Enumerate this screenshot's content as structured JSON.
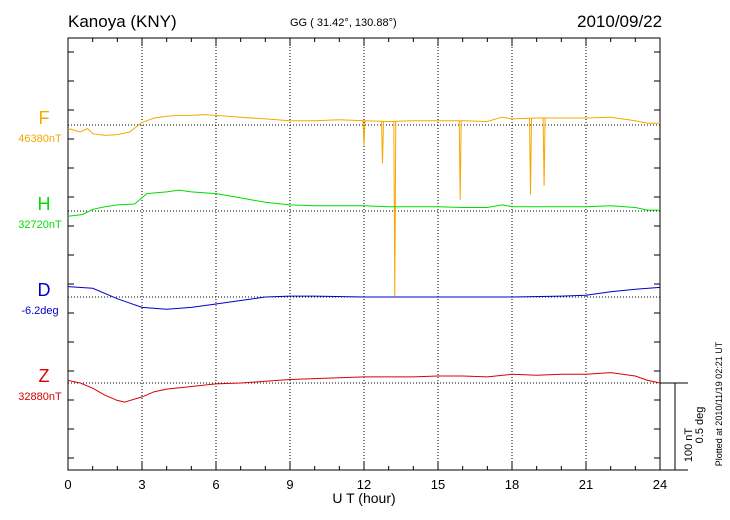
{
  "header": {
    "station": "Kanoya (KNY)",
    "coords": "GG ( 31.42°, 130.88°)",
    "date": "2010/09/22"
  },
  "side_note": "Plotted at 2010/11/19 02:21  UT",
  "scale": {
    "line1": "100 nT",
    "line2": "0.5 deg"
  },
  "chart_data": {
    "type": "line",
    "xlabel": "U T (hour)",
    "xlim": [
      0,
      24
    ],
    "x_ticks": [
      0,
      3,
      6,
      9,
      12,
      15,
      18,
      21,
      24
    ],
    "grid": true,
    "series": [
      {
        "name": "F",
        "baseline_label": "46380nT",
        "color": "#f5a800",
        "points": [
          [
            0,
            -4
          ],
          [
            0.5,
            -8
          ],
          [
            0.8,
            -4
          ],
          [
            1,
            -10
          ],
          [
            1.5,
            -12
          ],
          [
            2,
            -11
          ],
          [
            2.5,
            -8
          ],
          [
            3,
            3
          ],
          [
            3.5,
            8
          ],
          [
            4,
            10
          ],
          [
            4.5,
            11
          ],
          [
            5,
            11
          ],
          [
            5.5,
            12
          ],
          [
            6,
            11
          ],
          [
            7,
            9
          ],
          [
            8,
            7
          ],
          [
            9,
            5
          ],
          [
            10,
            5
          ],
          [
            11,
            6
          ],
          [
            12,
            5
          ],
          [
            13,
            4
          ],
          [
            14,
            5
          ],
          [
            15,
            5
          ],
          [
            16,
            5
          ],
          [
            17,
            4
          ],
          [
            17.6,
            9
          ],
          [
            18,
            7
          ],
          [
            19,
            8
          ],
          [
            20,
            8
          ],
          [
            21,
            8
          ],
          [
            22,
            9
          ],
          [
            23,
            5
          ],
          [
            23.5,
            2
          ],
          [
            24,
            2
          ]
        ],
        "spikes": [
          [
            12,
            -24
          ],
          [
            12.75,
            -44
          ],
          [
            13.25,
            -197
          ],
          [
            15.9,
            -86
          ],
          [
            18.75,
            -80
          ],
          [
            19.3,
            -70
          ]
        ]
      },
      {
        "name": "H",
        "baseline_label": "32720nT",
        "color": "#00dd00",
        "points": [
          [
            0,
            -6
          ],
          [
            0.6,
            -4
          ],
          [
            1,
            2
          ],
          [
            1.5,
            5
          ],
          [
            2,
            7
          ],
          [
            2.7,
            8
          ],
          [
            3.2,
            20
          ],
          [
            4,
            22
          ],
          [
            4.5,
            24
          ],
          [
            5,
            22
          ],
          [
            6,
            20
          ],
          [
            7,
            15
          ],
          [
            8,
            10
          ],
          [
            9,
            7
          ],
          [
            10,
            6
          ],
          [
            11,
            6
          ],
          [
            12,
            6
          ],
          [
            13,
            5
          ],
          [
            14,
            5
          ],
          [
            15,
            5
          ],
          [
            16,
            4
          ],
          [
            17,
            4
          ],
          [
            17.6,
            7
          ],
          [
            18,
            5
          ],
          [
            19,
            5
          ],
          [
            20,
            5
          ],
          [
            21,
            5
          ],
          [
            22,
            6
          ],
          [
            23,
            4
          ],
          [
            23.5,
            1
          ],
          [
            24,
            1
          ]
        ],
        "spikes": []
      },
      {
        "name": "D",
        "baseline_label": "-6.2deg",
        "color": "#0000cc",
        "points": [
          [
            0,
            12
          ],
          [
            1,
            10
          ],
          [
            2,
            -2
          ],
          [
            3,
            -12
          ],
          [
            4,
            -14
          ],
          [
            5,
            -12
          ],
          [
            6,
            -8
          ],
          [
            7,
            -4
          ],
          [
            8,
            0
          ],
          [
            9,
            1
          ],
          [
            10,
            1
          ],
          [
            12,
            0
          ],
          [
            14,
            0
          ],
          [
            16,
            0
          ],
          [
            18,
            0
          ],
          [
            20,
            1
          ],
          [
            21,
            2
          ],
          [
            22,
            6
          ],
          [
            23,
            9
          ],
          [
            24,
            11
          ]
        ],
        "spikes": []
      },
      {
        "name": "Z",
        "baseline_label": "32880nT",
        "color": "#dd0000",
        "points": [
          [
            0,
            3
          ],
          [
            0.5,
            0
          ],
          [
            1,
            -6
          ],
          [
            1.5,
            -14
          ],
          [
            2,
            -20
          ],
          [
            2.3,
            -22
          ],
          [
            3,
            -16
          ],
          [
            3.5,
            -10
          ],
          [
            4,
            -7
          ],
          [
            5,
            -4
          ],
          [
            6,
            -1
          ],
          [
            7,
            0
          ],
          [
            8,
            2
          ],
          [
            9,
            4
          ],
          [
            10,
            5
          ],
          [
            11,
            6
          ],
          [
            12,
            7
          ],
          [
            13,
            7
          ],
          [
            14,
            7
          ],
          [
            15,
            8
          ],
          [
            16,
            8
          ],
          [
            17,
            7
          ],
          [
            18,
            10
          ],
          [
            19,
            9
          ],
          [
            20,
            10
          ],
          [
            21,
            10
          ],
          [
            22,
            12
          ],
          [
            23,
            8
          ],
          [
            23.5,
            3
          ],
          [
            24,
            0
          ]
        ],
        "spikes": []
      }
    ]
  }
}
